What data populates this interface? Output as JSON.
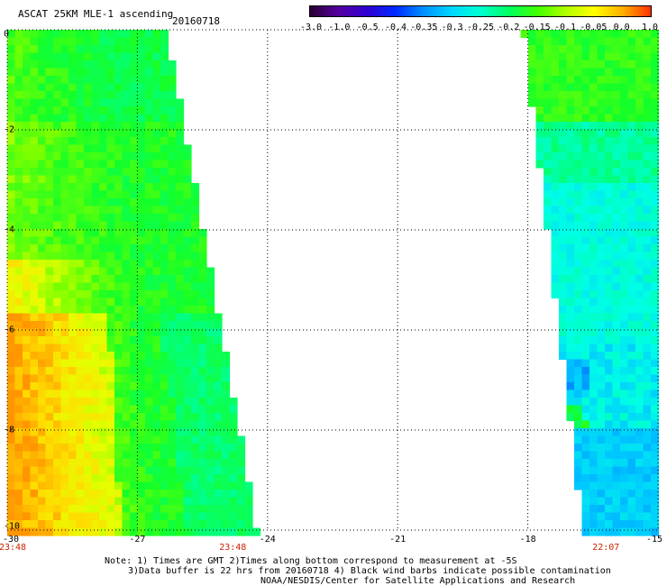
{
  "title": "ASCAT 25KM MLE-1 ascending",
  "date": "20160718",
  "colorbar": {
    "ticks": [
      "-3.0",
      "-1.0",
      "-0.5",
      "-0.4",
      "-0.35",
      "-0.3",
      "-0.25",
      "-0.2",
      "-0.15",
      "-0.1",
      "-0.05",
      "0.0",
      "1.0"
    ],
    "colors": [
      "#2a0030",
      "#5500a0",
      "#3000d0",
      "#0028ff",
      "#0090ff",
      "#00d8ff",
      "#00ffd0",
      "#00ff60",
      "#40ff00",
      "#b0ff00",
      "#ffff00",
      "#ffb000",
      "#ff3000"
    ]
  },
  "map": {
    "lon_ticks": [
      "-30",
      "-27",
      "-24",
      "-21",
      "-18",
      "-15"
    ],
    "lat_ticks": [
      "0",
      "-2",
      "-4",
      "-6",
      "-8",
      "-10"
    ],
    "lon_range": [
      -30,
      -15
    ],
    "lat_range": [
      -10,
      0
    ],
    "swath_times": [
      "23:48",
      "23:48",
      "22:07"
    ],
    "left_swath": {
      "lon_east_edge_top": -26.3,
      "lon_east_edge_bottom": -24.2
    },
    "right_swath": {
      "lon_west_edge_top": -18.1,
      "lon_west_edge_bottom": -16.7
    }
  },
  "notes": [
    "Note: 1) Times are GMT 2)Times along bottom correspond to measurement at -5S",
    "3)Data buffer is 22 hrs from 20160718 4) Black wind barbs indicate possible contamination",
    "NOAA/NESDIS/Center for Satellite Applications and Research"
  ]
}
